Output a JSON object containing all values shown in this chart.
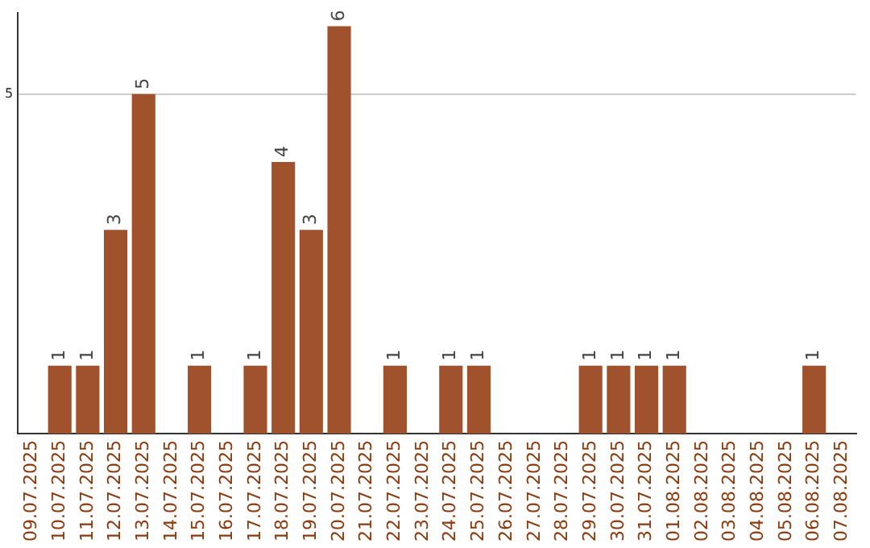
{
  "chart_data": {
    "type": "bar",
    "categories": [
      "09.07.2025",
      "10.07.2025",
      "11.07.2025",
      "12.07.2025",
      "13.07.2025",
      "14.07.2025",
      "15.07.2025",
      "16.07.2025",
      "17.07.2025",
      "18.07.2025",
      "19.07.2025",
      "20.07.2025",
      "21.07.2025",
      "22.07.2025",
      "23.07.2025",
      "24.07.2025",
      "25.07.2025",
      "26.07.2025",
      "27.07.2025",
      "28.07.2025",
      "29.07.2025",
      "30.07.2025",
      "31.07.2025",
      "01.08.2025",
      "02.08.2025",
      "03.08.2025",
      "04.08.2025",
      "05.08.2025",
      "06.08.2025",
      "07.08.2025"
    ],
    "values": [
      0,
      1,
      1,
      3,
      5,
      0,
      1,
      0,
      1,
      4,
      3,
      6,
      0,
      1,
      0,
      1,
      1,
      0,
      0,
      0,
      1,
      1,
      1,
      1,
      0,
      0,
      0,
      0,
      1,
      0
    ],
    "value_labels": [
      null,
      "1",
      "1",
      "3",
      "5",
      null,
      "1",
      null,
      "1",
      "4",
      "3",
      "6",
      null,
      "1",
      null,
      "1",
      "1",
      null,
      null,
      null,
      "1",
      "1",
      "1",
      "1",
      null,
      null,
      null,
      null,
      "1",
      null
    ],
    "color": "#a0522d",
    "ylim": [
      0,
      6.2
    ],
    "yticks": [
      5
    ],
    "grid": "y",
    "legend": false
  }
}
